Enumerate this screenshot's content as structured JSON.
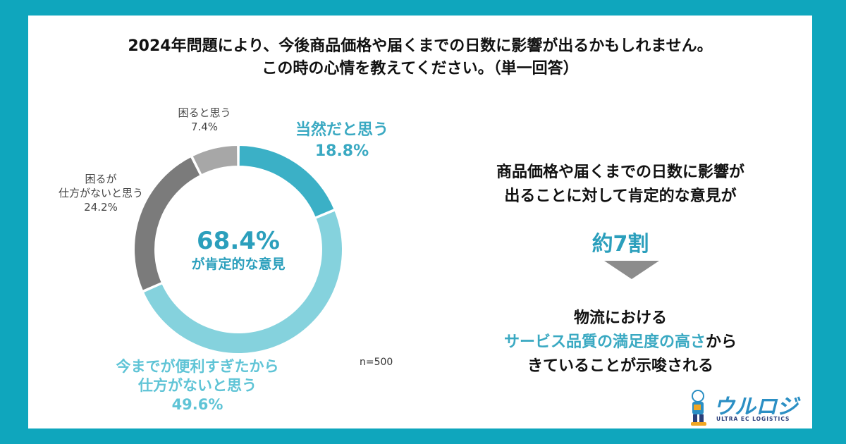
{
  "title": {
    "line1": "2024年問題により、今後商品価格や届くまでの日数に影響が出るかもしれません。",
    "line2": "この時の心情を教えてください。（単一回答）"
  },
  "chart_data": {
    "type": "pie",
    "donut": true,
    "slices": [
      {
        "label": "当然だと思う",
        "value": 18.8,
        "value_text": "18.8%",
        "color": "#3bb0c6"
      },
      {
        "label": "今までが便利すぎたから仕方がないと思う",
        "label_lines": [
          "今までが便利すぎたから",
          "仕方がないと思う"
        ],
        "value": 49.6,
        "value_text": "49.6%",
        "color": "#85d2dd"
      },
      {
        "label": "困るが仕方がないと思う",
        "label_lines": [
          "困るが",
          "仕方がないと思う"
        ],
        "value": 24.2,
        "value_text": "24.2%",
        "color": "#7b7b7b"
      },
      {
        "label": "困ると思う",
        "value": 7.4,
        "value_text": "7.4%",
        "color": "#a7a7a7"
      }
    ],
    "center_value": "68.4%",
    "center_label": "が肯定的な意見",
    "sample": "n=500"
  },
  "summary": {
    "line1": "商品価格や届くまでの日数に影響が",
    "line2": "出ることに対して肯定的な意見が",
    "ratio": "約7割",
    "conclusion_line1": "物流における",
    "conclusion_highlight": "サービス品質の満足度の高さ",
    "conclusion_line2_tail": "から",
    "conclusion_line3": "きていることが示唆される"
  },
  "logo": {
    "name": "ウルロジ",
    "tagline": "ULTRA EC LOGISTICS"
  },
  "colors": {
    "frame": "#0fa6bd",
    "accent": "#2b9fbc"
  }
}
